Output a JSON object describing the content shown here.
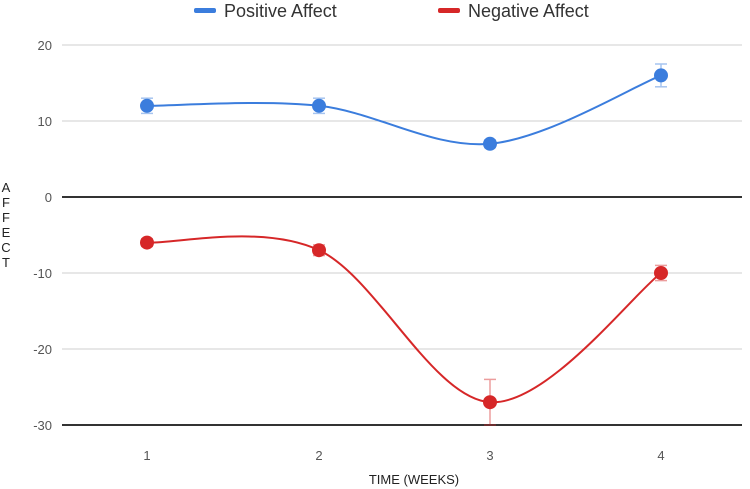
{
  "chart_data": {
    "type": "line",
    "title": "",
    "xlabel": "TIME (WEEKS)",
    "ylabel": "AFFECT",
    "categories": [
      "1",
      "2",
      "3",
      "4"
    ],
    "x": [
      1,
      2,
      3,
      4
    ],
    "ylim": [
      -30,
      20
    ],
    "yticks": [
      20,
      10,
      0,
      -10,
      -20,
      -30
    ],
    "ytick_labels": [
      "20",
      "10",
      "0",
      "-10",
      "-20",
      "-30"
    ],
    "grid": true,
    "legend_position": "top-center",
    "series": [
      {
        "name": "Positive Affect",
        "color": "#3b7ddd",
        "values": [
          12,
          12,
          7,
          16
        ],
        "errors": [
          1,
          1,
          0.5,
          1.5
        ]
      },
      {
        "name": "Negative Affect",
        "color": "#d62728",
        "values": [
          -6,
          -7,
          -27,
          -10
        ],
        "errors": [
          0.5,
          0.7,
          3,
          1
        ]
      }
    ]
  }
}
